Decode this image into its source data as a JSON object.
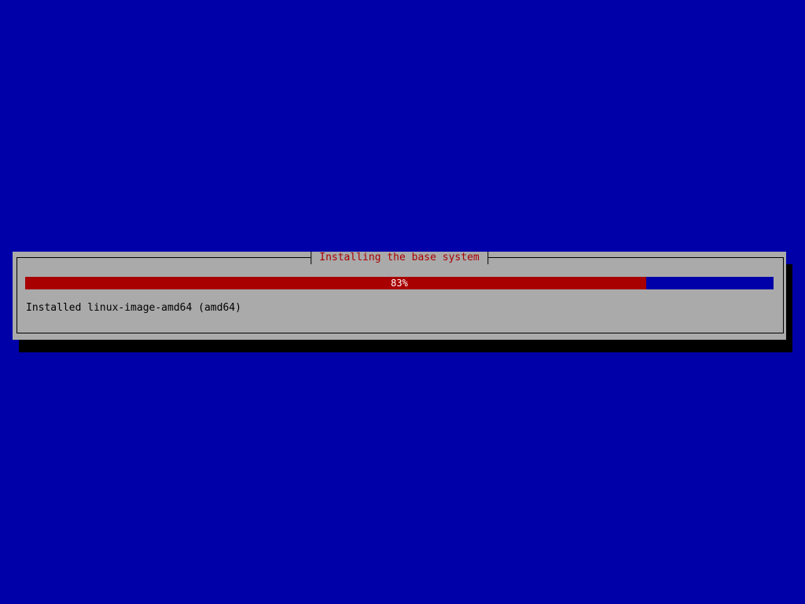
{
  "dialog": {
    "title": "Installing the base system",
    "progress": {
      "percent": 83,
      "label": "83%"
    },
    "status": "Installed linux-image-amd64 (amd64)"
  },
  "colors": {
    "background": "#0000a8",
    "dialog": "#aaaaaa",
    "title": "#a80000",
    "progress_fill": "#a80000",
    "progress_track": "#0000a8"
  }
}
